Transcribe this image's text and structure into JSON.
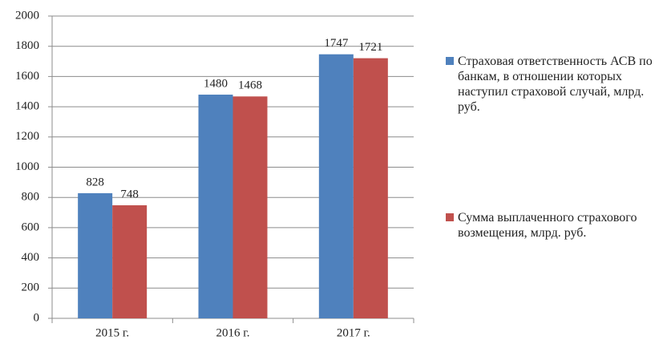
{
  "chart_data": {
    "type": "bar",
    "categories": [
      "2015 г.",
      "2016 г.",
      "2017 г."
    ],
    "series": [
      {
        "name": "Страховая ответственность АСВ по банкам, в отношении которых наступил страховой случай, млрд. руб.",
        "color": "#4f81bd",
        "values": [
          828,
          1480,
          1747
        ]
      },
      {
        "name": "Сумма выплаченного страхового возмещения, млрд. руб.",
        "color": "#c0504d",
        "values": [
          748,
          1468,
          1721
        ]
      }
    ],
    "ylim": [
      0,
      2000
    ],
    "yticks": [
      0,
      200,
      400,
      600,
      800,
      1000,
      1200,
      1400,
      1600,
      1800,
      2000
    ],
    "grid": true,
    "legend": "right"
  }
}
